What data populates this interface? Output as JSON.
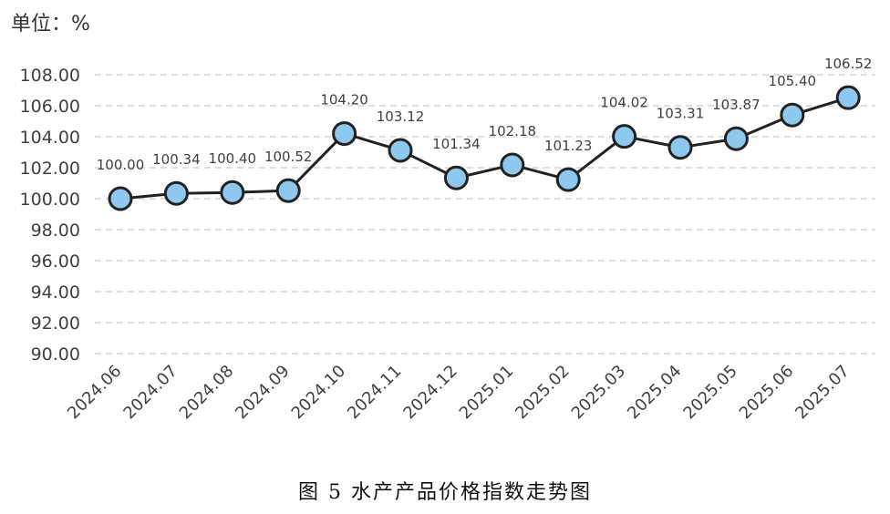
{
  "unit_label": "单位：%",
  "caption": "图 5  水产产品价格指数走势图",
  "chart_data": {
    "type": "line",
    "title": "",
    "xlabel": "",
    "ylabel": "",
    "ylim": [
      90,
      108
    ],
    "y_ticks": [
      "90.00",
      "92.00",
      "94.00",
      "96.00",
      "98.00",
      "100.00",
      "102.00",
      "104.00",
      "106.00",
      "108.00"
    ],
    "grid": "horizontal-dashed",
    "categories": [
      "2024.06",
      "2024.07",
      "2024.08",
      "2024.09",
      "2024.10",
      "2024.11",
      "2024.12",
      "2025.01",
      "2025.02",
      "2025.03",
      "2025.04",
      "2025.05",
      "2025.06",
      "2025.07"
    ],
    "series": [
      {
        "values": [
          100.0,
          100.34,
          100.4,
          100.52,
          104.2,
          103.12,
          101.34,
          102.18,
          101.23,
          104.02,
          103.31,
          103.87,
          105.4,
          106.52
        ],
        "labels": [
          "100.00",
          "100.34",
          "100.40",
          "100.52",
          "104.20",
          "103.12",
          "101.34",
          "102.18",
          "101.23",
          "104.02",
          "103.31",
          "103.87",
          "105.40",
          "106.52"
        ],
        "line_color": "#222222",
        "marker_fill": "#8ec8ef",
        "marker_stroke": "#222222"
      }
    ],
    "grid_color": "#cccccc"
  }
}
